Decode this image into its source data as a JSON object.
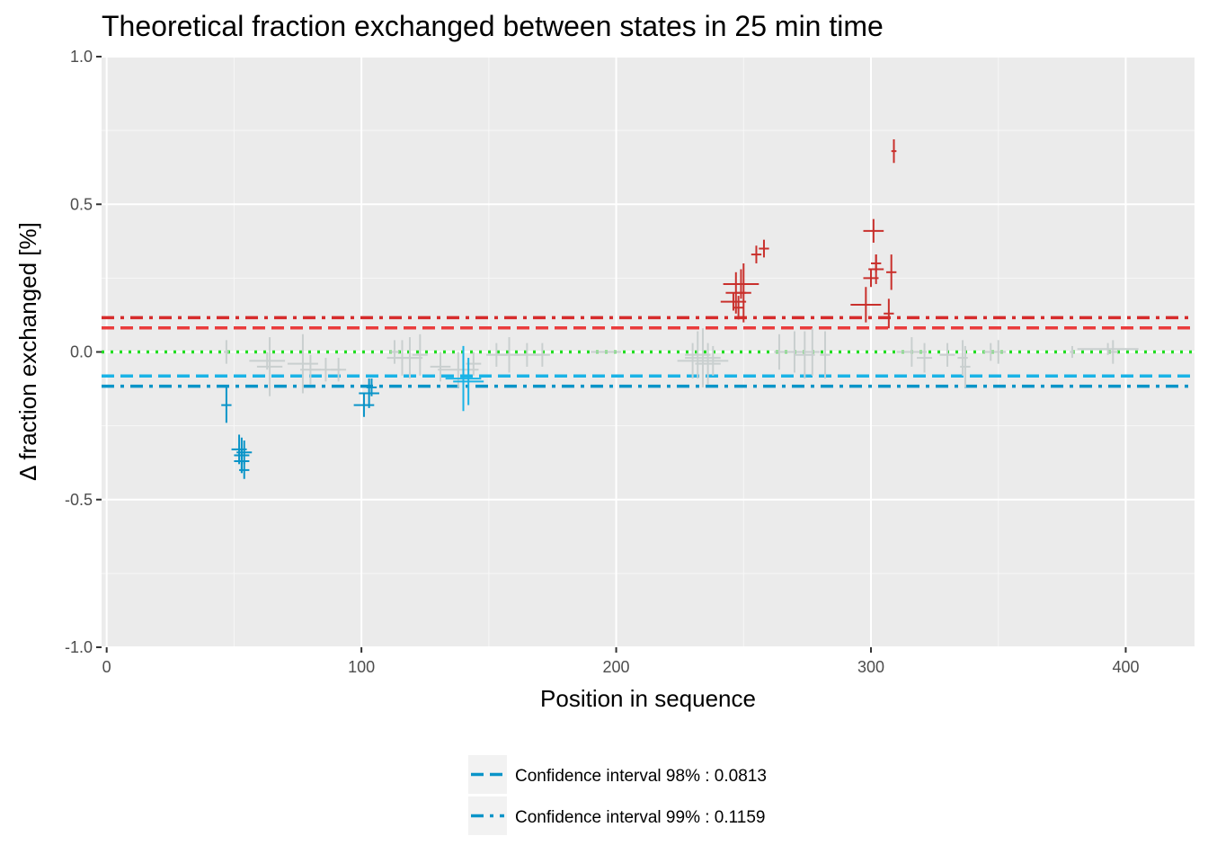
{
  "chart_data": {
    "type": "scatter",
    "title": "Theoretical fraction exchanged between states in 25 min time",
    "xlabel": "Position in sequence",
    "ylabel": "Δ fraction exchanged [%]",
    "xlim": [
      -2,
      427
    ],
    "ylim": [
      -1.0,
      1.0
    ],
    "x_ticks": [
      0,
      100,
      200,
      300,
      400
    ],
    "x_tick_labels": [
      "0",
      "100",
      "200",
      "300",
      "400"
    ],
    "y_ticks": [
      -1.0,
      -0.5,
      0.0,
      0.5,
      1.0
    ],
    "y_tick_labels": [
      "-1.0",
      "-0.5",
      "0.0",
      "0.5",
      "1.0"
    ],
    "grid": true,
    "reference_lines": [
      {
        "y": 0.1159,
        "color": "#d62b2b",
        "style": "dashdot"
      },
      {
        "y": 0.0813,
        "color": "#ea3c3c",
        "style": "dashed"
      },
      {
        "y": 0.0,
        "color": "#22dd22",
        "style": "dotted"
      },
      {
        "y": -0.0813,
        "color": "#1ab3e6",
        "style": "dashed"
      },
      {
        "y": -0.1159,
        "color": "#0a94c8",
        "style": "dashdot"
      }
    ],
    "legend": {
      "position": "bottom",
      "entries": [
        {
          "label": "Confidence interval 98% : 0.0813",
          "color": "#0a94c8",
          "style": "dashed"
        },
        {
          "label": "Confidence interval 99% : 0.1159",
          "color": "#0a94c8",
          "style": "dashdot"
        }
      ]
    },
    "series": [
      {
        "color": "#c9cfcf",
        "points": [
          {
            "x": 47,
            "y": 0.0,
            "xerr": 1,
            "yerr": 0.04
          },
          {
            "x": 63,
            "y": -0.03,
            "xerr": 7,
            "yerr": 0.03
          },
          {
            "x": 64,
            "y": -0.05,
            "xerr": 5,
            "yerr": 0.1
          },
          {
            "x": 77,
            "y": -0.04,
            "xerr": 6,
            "yerr": 0.1
          },
          {
            "x": 80,
            "y": -0.06,
            "xerr": 4,
            "yerr": 0.05
          },
          {
            "x": 86,
            "y": -0.06,
            "xerr": 6,
            "yerr": 0.04
          },
          {
            "x": 91,
            "y": -0.06,
            "xerr": 3,
            "yerr": 0.04
          },
          {
            "x": 113,
            "y": 0.0,
            "xerr": 2,
            "yerr": 0.04
          },
          {
            "x": 116,
            "y": -0.02,
            "xerr": 6,
            "yerr": 0.06
          },
          {
            "x": 119,
            "y": -0.02,
            "xerr": 5,
            "yerr": 0.07
          },
          {
            "x": 123,
            "y": -0.01,
            "xerr": 3,
            "yerr": 0.07
          },
          {
            "x": 131,
            "y": -0.05,
            "xerr": 4,
            "yerr": 0.05
          },
          {
            "x": 138,
            "y": -0.06,
            "xerr": 8,
            "yerr": 0.06
          },
          {
            "x": 144,
            "y": -0.04,
            "xerr": 3,
            "yerr": 0.04
          },
          {
            "x": 153,
            "y": -0.01,
            "xerr": 4,
            "yerr": 0.04
          },
          {
            "x": 158,
            "y": -0.01,
            "xerr": 4,
            "yerr": 0.06
          },
          {
            "x": 165,
            "y": -0.01,
            "xerr": 5,
            "yerr": 0.04
          },
          {
            "x": 171,
            "y": -0.01,
            "xerr": 3,
            "yerr": 0.04
          },
          {
            "x": 196,
            "y": 0.0,
            "xerr": 6,
            "yerr": 0.0
          },
          {
            "x": 230,
            "y": -0.03,
            "xerr": 6,
            "yerr": 0.06
          },
          {
            "x": 232,
            "y": -0.01,
            "xerr": 5,
            "yerr": 0.08
          },
          {
            "x": 234,
            "y": -0.02,
            "xerr": 7,
            "yerr": 0.1
          },
          {
            "x": 236,
            "y": -0.04,
            "xerr": 5,
            "yerr": 0.07
          },
          {
            "x": 238,
            "y": -0.03,
            "xerr": 6,
            "yerr": 0.05
          },
          {
            "x": 264,
            "y": 0.0,
            "xerr": 2,
            "yerr": 0.06
          },
          {
            "x": 270,
            "y": 0.0,
            "xerr": 5,
            "yerr": 0.07
          },
          {
            "x": 274,
            "y": -0.01,
            "xerr": 4,
            "yerr": 0.08
          },
          {
            "x": 277,
            "y": 0.0,
            "xerr": 3,
            "yerr": 0.08
          },
          {
            "x": 282,
            "y": -0.01,
            "xerr": 2,
            "yerr": 0.08
          },
          {
            "x": 316,
            "y": 0.0,
            "xerr": 6,
            "yerr": 0.05
          },
          {
            "x": 321,
            "y": -0.02,
            "xerr": 3,
            "yerr": 0.05
          },
          {
            "x": 330,
            "y": -0.01,
            "xerr": 3,
            "yerr": 0.04
          },
          {
            "x": 336,
            "y": -0.02,
            "xerr": 2,
            "yerr": 0.06
          },
          {
            "x": 337,
            "y": -0.05,
            "xerr": 2,
            "yerr": 0.07
          },
          {
            "x": 347,
            "y": 0.0,
            "xerr": 3,
            "yerr": 0.03
          },
          {
            "x": 350,
            "y": 0.0,
            "xerr": 3,
            "yerr": 0.04
          },
          {
            "x": 379,
            "y": 0.0,
            "xerr": 1,
            "yerr": 0.02
          },
          {
            "x": 393,
            "y": 0.01,
            "xerr": 12,
            "yerr": 0.02
          },
          {
            "x": 395,
            "y": 0.0,
            "xerr": 2,
            "yerr": 0.04
          }
        ]
      },
      {
        "color": "#0a94c8",
        "points": [
          {
            "x": 47,
            "y": -0.18,
            "xerr": 2,
            "yerr": 0.06
          },
          {
            "x": 52,
            "y": -0.33,
            "xerr": 3,
            "yerr": 0.05
          },
          {
            "x": 53,
            "y": -0.35,
            "xerr": 3,
            "yerr": 0.06
          },
          {
            "x": 53,
            "y": -0.37,
            "xerr": 3,
            "yerr": 0.04
          },
          {
            "x": 54,
            "y": -0.34,
            "xerr": 3,
            "yerr": 0.04
          },
          {
            "x": 54,
            "y": -0.4,
            "xerr": 2,
            "yerr": 0.03
          },
          {
            "x": 101,
            "y": -0.18,
            "xerr": 4,
            "yerr": 0.04
          },
          {
            "x": 103,
            "y": -0.14,
            "xerr": 4,
            "yerr": 0.05
          },
          {
            "x": 104,
            "y": -0.12,
            "xerr": 2,
            "yerr": 0.03
          }
        ]
      },
      {
        "color": "#1ab3e6",
        "points": [
          {
            "x": 140,
            "y": -0.09,
            "xerr": 7,
            "yerr": 0.11
          },
          {
            "x": 142,
            "y": -0.1,
            "xerr": 6,
            "yerr": 0.08
          }
        ]
      },
      {
        "color": "#c9302c",
        "points": [
          {
            "x": 246,
            "y": 0.17,
            "xerr": 5,
            "yerr": 0.03
          },
          {
            "x": 247,
            "y": 0.2,
            "xerr": 4,
            "yerr": 0.07
          },
          {
            "x": 248,
            "y": 0.15,
            "xerr": 2,
            "yerr": 0.04
          },
          {
            "x": 249,
            "y": 0.23,
            "xerr": 7,
            "yerr": 0.05
          },
          {
            "x": 250,
            "y": 0.2,
            "xerr": 3,
            "yerr": 0.1
          },
          {
            "x": 255,
            "y": 0.33,
            "xerr": 2,
            "yerr": 0.03
          },
          {
            "x": 258,
            "y": 0.35,
            "xerr": 2,
            "yerr": 0.03
          },
          {
            "x": 298,
            "y": 0.16,
            "xerr": 6,
            "yerr": 0.06
          },
          {
            "x": 300,
            "y": 0.25,
            "xerr": 3,
            "yerr": 0.03
          },
          {
            "x": 301,
            "y": 0.41,
            "xerr": 4,
            "yerr": 0.04
          },
          {
            "x": 302,
            "y": 0.28,
            "xerr": 3,
            "yerr": 0.05
          },
          {
            "x": 302,
            "y": 0.3,
            "xerr": 2,
            "yerr": 0.03
          },
          {
            "x": 307,
            "y": 0.13,
            "xerr": 2,
            "yerr": 0.05
          },
          {
            "x": 308,
            "y": 0.27,
            "xerr": 2,
            "yerr": 0.06
          },
          {
            "x": 309,
            "y": 0.68,
            "xerr": 1,
            "yerr": 0.04
          }
        ]
      }
    ]
  }
}
